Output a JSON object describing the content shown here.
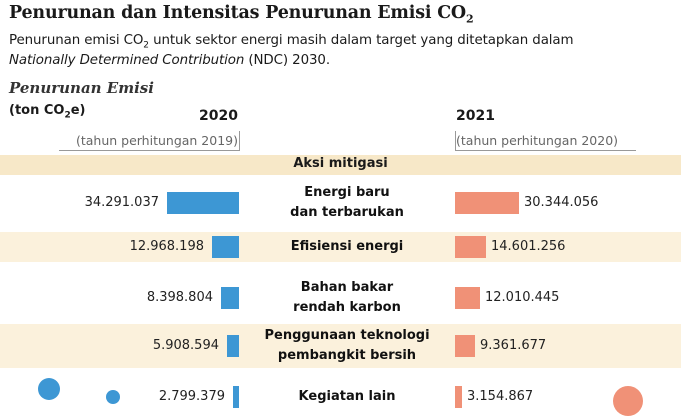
{
  "header": {
    "title": "Penurunan dan Intensitas Penurunan Emisi CO",
    "title_sub": "2",
    "subtitle_line1_a": "Penurunan emisi CO",
    "subtitle_line1_sub": "2",
    "subtitle_line1_b": " untuk sektor energi masih dalam target yang ditetapkan dalam",
    "subtitle_line2_italic": "Nationally Determined Contribution",
    "subtitle_line2_rest": " (NDC) 2030."
  },
  "chart_data": {
    "type": "bar",
    "title": "Penurunan Emisi",
    "unit_a": "(ton CO",
    "unit_sub": "2",
    "unit_b": "e)",
    "group_label": "Aksi mitigasi",
    "categories": [
      "Energi baru dan terbarukan",
      "Efisiensi energi",
      "Bahan bakar rendah karbon",
      "Penggunaan teknologi pembangkit bersih",
      "Kegiatan lain"
    ],
    "category_lines": [
      [
        "Energi baru",
        "dan terbarukan"
      ],
      [
        "Efisiensi energi"
      ],
      [
        "Bahan bakar",
        "rendah karbon"
      ],
      [
        "Penggunaan teknologi",
        "pembangkit bersih"
      ],
      [
        "Kegiatan lain"
      ]
    ],
    "series": [
      {
        "name": "2020",
        "basis": "(tahun perhitungan 2019)",
        "color": "#3d97d4",
        "values": [
          34291037,
          12968198,
          8398804,
          5908594,
          2799379
        ],
        "labels": [
          "34.291.037",
          "12.968.198",
          "8.398.804",
          "5.908.594",
          "2.799.379"
        ]
      },
      {
        "name": "2021",
        "basis": "(tahun perhitungan 2020)",
        "color": "#f09177",
        "values": [
          30344056,
          14601256,
          12010445,
          9361677,
          3154867
        ],
        "labels": [
          "30.344.056",
          "14.601.256",
          "12.010.445",
          "9.361.677",
          "3.154.867"
        ]
      }
    ]
  }
}
